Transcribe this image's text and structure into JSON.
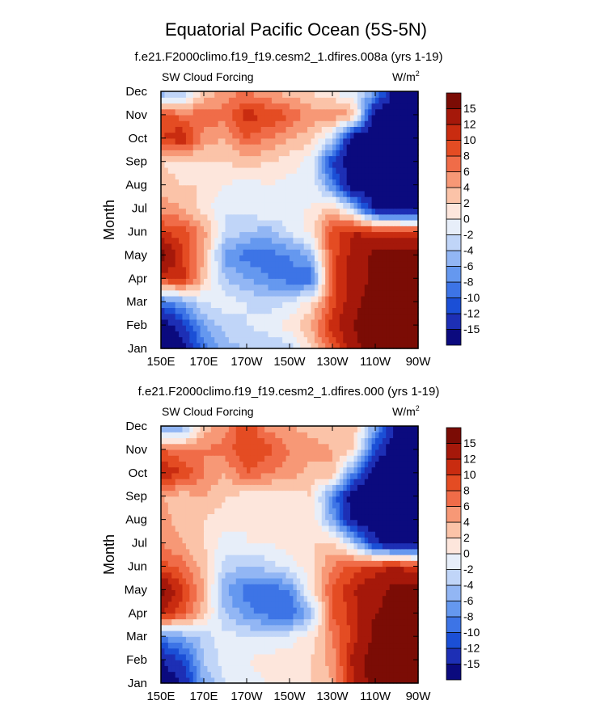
{
  "figure": {
    "title": "Equatorial Pacific Ocean (5S-5N)"
  },
  "chart_data": [
    {
      "type": "heatmap",
      "subtitle": "f.e21.F2000climo.f19_f19.cesm2_1.dfires.008a (yrs 1-19)",
      "left_label": "SW Cloud Forcing",
      "units_label": "W/m",
      "units_superscript": "2",
      "ylabel": "Month",
      "xlabel": "",
      "x_ticks": [
        "150E",
        "170E",
        "170W",
        "150W",
        "130W",
        "110W",
        "90W"
      ],
      "y_ticks": [
        "Jan",
        "Feb",
        "Mar",
        "Apr",
        "May",
        "Jun",
        "Jul",
        "Aug",
        "Sep",
        "Oct",
        "Nov",
        "Dec"
      ],
      "colorbar_labels": [
        "-15",
        "-12",
        "-10",
        "-8",
        "-6",
        "-4",
        "-2",
        "0",
        "2",
        "4",
        "6",
        "8",
        "10",
        "12",
        "15"
      ],
      "longitudes": [
        150,
        160,
        170,
        180,
        190,
        200,
        210,
        220,
        230,
        240,
        250,
        260,
        270
      ],
      "values": [
        [
          -18,
          -16,
          -9,
          -5,
          -4,
          -4,
          -3,
          2,
          8,
          14,
          17,
          18,
          18
        ],
        [
          -18,
          -13,
          -6,
          -3,
          -2,
          -1,
          1,
          4,
          11,
          15,
          18,
          18,
          18
        ],
        [
          -9,
          -6,
          -2,
          -1,
          -2,
          -3,
          -2,
          1,
          9,
          14,
          17,
          18,
          18
        ],
        [
          10,
          11,
          3,
          -4,
          -6,
          -8,
          -9,
          -10,
          9,
          13,
          16,
          16,
          16
        ],
        [
          17,
          10,
          4,
          -7,
          -9,
          -9,
          -8,
          -5,
          9,
          13,
          16,
          16,
          16
        ],
        [
          10,
          9,
          5,
          -2,
          -4,
          -5,
          -2,
          1,
          9,
          12,
          11,
          11,
          10
        ],
        [
          5,
          4,
          1,
          -2,
          -1,
          0,
          0,
          0,
          3,
          -4,
          -16,
          -18,
          -18
        ],
        [
          3,
          2,
          2,
          0,
          -1,
          0,
          -1,
          0,
          -8,
          -18,
          -18,
          -18,
          -18
        ],
        [
          2,
          1,
          2,
          2,
          3,
          2,
          1,
          -1,
          -12,
          -18,
          -18,
          -18,
          -18
        ],
        [
          10,
          12,
          5,
          4,
          8,
          6,
          4,
          3,
          -3,
          -18,
          -18,
          -18,
          -18
        ],
        [
          9,
          7,
          7,
          7,
          11,
          10,
          8,
          5,
          6,
          4,
          -18,
          -18,
          -18
        ],
        [
          -6,
          -5,
          2,
          5,
          6,
          4,
          3,
          2,
          0,
          -2,
          -6,
          -18,
          -18
        ]
      ],
      "xlim": [
        150,
        270
      ],
      "ylim": [
        0,
        11
      ]
    },
    {
      "type": "heatmap",
      "subtitle": "f.e21.F2000climo.f19_f19.cesm2_1.dfires.000 (yrs 1-19)",
      "left_label": "SW Cloud Forcing",
      "units_label": "W/m",
      "units_superscript": "2",
      "ylabel": "Month",
      "xlabel": "",
      "x_ticks": [
        "150E",
        "170E",
        "170W",
        "150W",
        "130W",
        "110W",
        "90W"
      ],
      "y_ticks": [
        "Jan",
        "Feb",
        "Mar",
        "Apr",
        "May",
        "Jun",
        "Jul",
        "Aug",
        "Sep",
        "Oct",
        "Nov",
        "Dec"
      ],
      "colorbar_labels": [
        "-15",
        "-12",
        "-10",
        "-8",
        "-6",
        "-4",
        "-2",
        "0",
        "2",
        "4",
        "6",
        "8",
        "10",
        "12",
        "15"
      ],
      "longitudes": [
        150,
        160,
        170,
        180,
        190,
        200,
        210,
        220,
        230,
        240,
        250,
        260,
        270
      ],
      "values": [
        [
          -18,
          -15,
          -6,
          -2,
          -1,
          0,
          1,
          2,
          4,
          12,
          17,
          18,
          18
        ],
        [
          -15,
          -12,
          -4,
          -1,
          0,
          1,
          1,
          2,
          5,
          13,
          17,
          18,
          18
        ],
        [
          -8,
          -6,
          -3,
          -1,
          -2,
          -2,
          -1,
          1,
          6,
          11,
          16,
          18,
          18
        ],
        [
          12,
          9,
          3,
          -4,
          -7,
          -9,
          -10,
          -5,
          8,
          11,
          15,
          16,
          16
        ],
        [
          16,
          10,
          4,
          -6,
          -9,
          -10,
          -8,
          1,
          8,
          12,
          14,
          16,
          16
        ],
        [
          9,
          7,
          3,
          -3,
          -4,
          -3,
          -1,
          1,
          6,
          9,
          11,
          12,
          10
        ],
        [
          6,
          4,
          2,
          -1,
          0,
          0,
          1,
          2,
          3,
          -4,
          -14,
          -18,
          -18
        ],
        [
          5,
          3,
          2,
          1,
          0,
          0,
          1,
          2,
          -6,
          -16,
          -18,
          -18,
          -18
        ],
        [
          4,
          3,
          4,
          2,
          1,
          1,
          1,
          2,
          -8,
          -18,
          -18,
          -18,
          -18
        ],
        [
          12,
          10,
          6,
          4,
          8,
          6,
          5,
          3,
          4,
          -8,
          -18,
          -18,
          -18
        ],
        [
          8,
          6,
          6,
          7,
          10,
          9,
          6,
          5,
          4,
          2,
          -12,
          -18,
          -18
        ],
        [
          -8,
          -6,
          3,
          5,
          10,
          5,
          4,
          3,
          2,
          3,
          -6,
          -16,
          -18
        ]
      ],
      "xlim": [
        150,
        270
      ],
      "ylim": [
        0,
        11
      ]
    }
  ],
  "colorbar": {
    "levels": [
      -15,
      -12,
      -10,
      -8,
      -6,
      -4,
      -2,
      0,
      2,
      4,
      6,
      8,
      10,
      12,
      15
    ],
    "colors": [
      "#0b0a7e",
      "#1d2fb5",
      "#1b4fd6",
      "#3d74e6",
      "#6598ef",
      "#92b6f4",
      "#c0d5f8",
      "#e7eef9",
      "#fde6dc",
      "#fbc3a8",
      "#f79876",
      "#f06c48",
      "#e44c23",
      "#c92c10",
      "#a5180a",
      "#7b0c05"
    ]
  }
}
